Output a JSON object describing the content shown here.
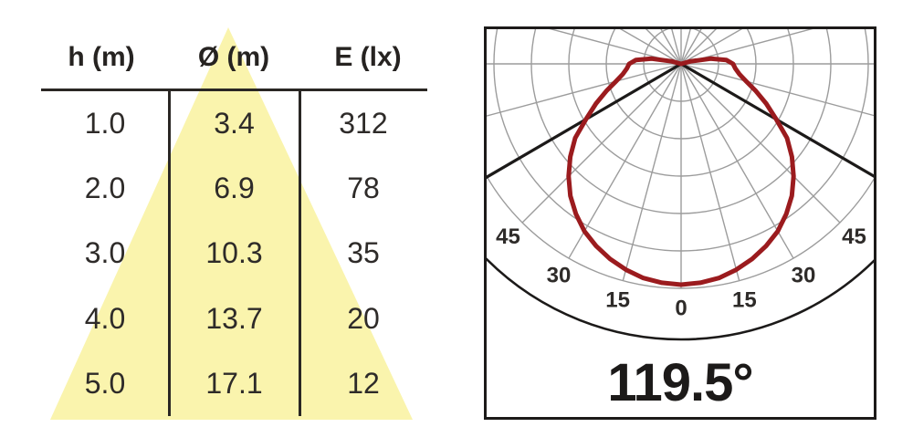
{
  "table": {
    "headers": [
      "h (m)",
      "Ø (m)",
      "E (lx)"
    ],
    "rows": [
      [
        "1.0",
        "3.4",
        "312"
      ],
      [
        "2.0",
        "6.9",
        "78"
      ],
      [
        "3.0",
        "10.3",
        "35"
      ],
      [
        "4.0",
        "13.7",
        "20"
      ],
      [
        "5.0",
        "17.1",
        "12"
      ]
    ]
  },
  "polar": {
    "beam_angle_label": "119.5°"
  },
  "colors": {
    "cone_fill": "#FAF4AD",
    "curve_red": "#9B1B1E",
    "grid_gray": "#9C9C9C",
    "line_black": "#1c1a19",
    "text_dark": "#2e2b29"
  },
  "chart_data": [
    {
      "type": "table",
      "title": "Illuminance cone data",
      "columns": [
        "h (m)",
        "Ø (m)",
        "E (lx)"
      ],
      "rows": [
        [
          1.0,
          3.4,
          312
        ],
        [
          2.0,
          6.9,
          78
        ],
        [
          3.0,
          10.3,
          35
        ],
        [
          4.0,
          13.7,
          20
        ],
        [
          5.0,
          17.1,
          12
        ]
      ]
    },
    {
      "type": "polar",
      "beam_angle_label": "119.5°",
      "beam_angle_deg": 119.5,
      "beam_half_angle_deg": 59.75,
      "angle_grid_step_deg": 15,
      "angle_tick_labels_deg": [
        0,
        15,
        30,
        45
      ],
      "ring_count": 6,
      "curve_symmetric": true,
      "curve": {
        "angles_deg": [
          0,
          5,
          10,
          15,
          20,
          25,
          30,
          35,
          40,
          45,
          50,
          55,
          60,
          65,
          70,
          75,
          80,
          85,
          90,
          95,
          100,
          105,
          108
        ],
        "relative_intensity": [
          1.0,
          0.995,
          0.985,
          0.965,
          0.94,
          0.91,
          0.875,
          0.83,
          0.78,
          0.72,
          0.655,
          0.585,
          0.495,
          0.425,
          0.36,
          0.305,
          0.268,
          0.247,
          0.235,
          0.205,
          0.135,
          0.045,
          0.0
        ]
      },
      "legend": "off",
      "grid": "on"
    }
  ]
}
